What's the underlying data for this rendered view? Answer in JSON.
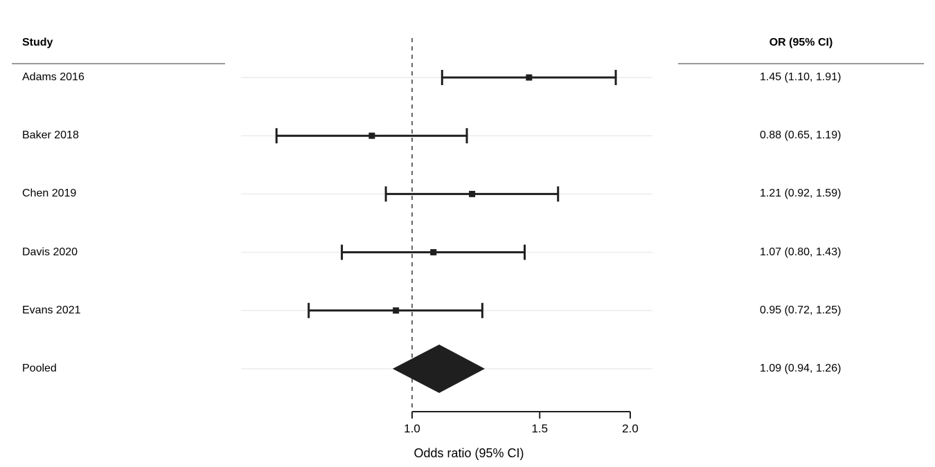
{
  "columns": {
    "study_header": "Study",
    "or_header": "OR (95% CI)"
  },
  "chart_data": {
    "type": "forest",
    "scale": "log",
    "reference_line": 1.0,
    "axis": {
      "xlabel": "Odds ratio (95% CI)",
      "ticks": [
        1.0,
        1.5,
        2.0
      ],
      "tick_labels": [
        "1.0",
        "1.5",
        "2.0"
      ],
      "range_shown": [
        1.0,
        2.0
      ]
    },
    "studies": [
      {
        "label": "Adams 2016",
        "or": 1.45,
        "ci_low": 1.1,
        "ci_high": 1.91,
        "or_ci_text": "1.45 (1.10, 1.91)",
        "is_pooled": false
      },
      {
        "label": "Baker 2018",
        "or": 0.88,
        "ci_low": 0.65,
        "ci_high": 1.19,
        "or_ci_text": "0.88 (0.65, 1.19)",
        "is_pooled": false
      },
      {
        "label": "Chen 2019",
        "or": 1.21,
        "ci_low": 0.92,
        "ci_high": 1.59,
        "or_ci_text": "1.21 (0.92, 1.59)",
        "is_pooled": false
      },
      {
        "label": "Davis 2020",
        "or": 1.07,
        "ci_low": 0.8,
        "ci_high": 1.43,
        "or_ci_text": "1.07 (0.80, 1.43)",
        "is_pooled": false
      },
      {
        "label": "Evans 2021",
        "or": 0.95,
        "ci_low": 0.72,
        "ci_high": 1.25,
        "or_ci_text": "0.95 (0.72, 1.25)",
        "is_pooled": false
      },
      {
        "label": "Pooled",
        "or": 1.09,
        "ci_low": 0.94,
        "ci_high": 1.26,
        "or_ci_text": "1.09 (0.94, 1.26)",
        "is_pooled": true
      }
    ],
    "colors": {
      "ink": "#1f1f1f",
      "grid": "#ececec",
      "reference": "#666666",
      "divider": "#9a9a9a",
      "text": "#000000"
    }
  }
}
